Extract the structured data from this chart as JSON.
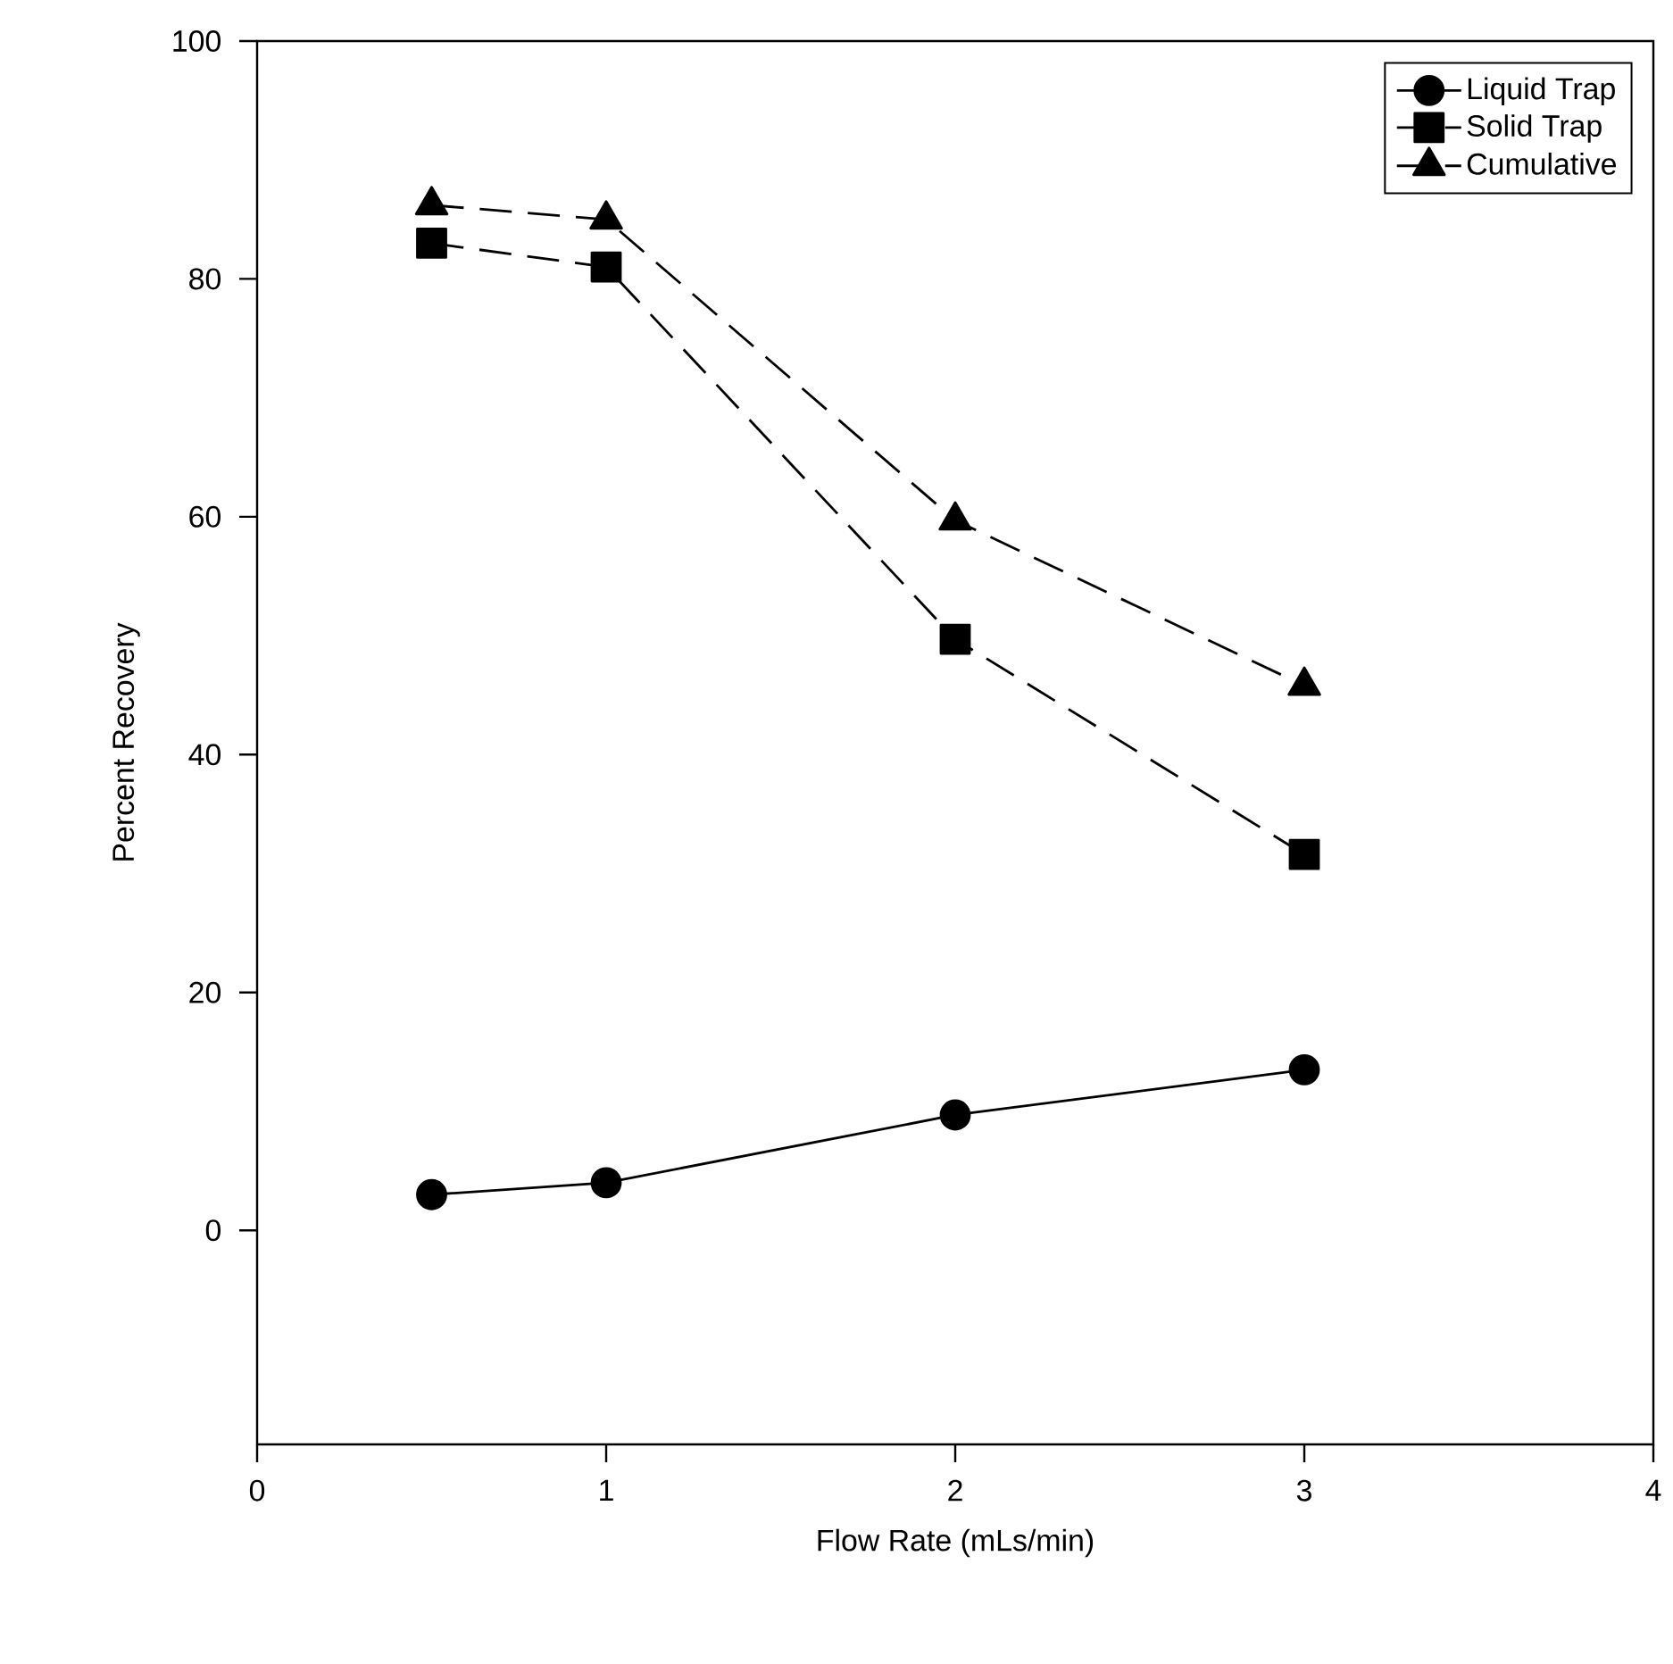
{
  "chart_data": {
    "type": "line",
    "xlabel": "Flow Rate (mLs/min)",
    "ylabel": "Percent Recovery",
    "xlim": [
      0,
      4
    ],
    "ylim": [
      -18,
      100
    ],
    "xticks": [
      0,
      1,
      2,
      3,
      4
    ],
    "yticks": [
      0,
      20,
      40,
      60,
      80,
      100
    ],
    "grid": false,
    "legend": "top right",
    "x": [
      0.5,
      1,
      2,
      3
    ],
    "series": [
      {
        "name": "Liquid Trap",
        "color": "#000000",
        "marker": "circle",
        "line_style": "solid",
        "values": [
          3,
          4,
          9.7,
          13.5
        ]
      },
      {
        "name": "Solid Trap",
        "color": "#000000",
        "marker": "square",
        "line_style": "dashed",
        "values": [
          83,
          81,
          49.7,
          31.6
        ]
      },
      {
        "name": "Cumulative",
        "color": "#000000",
        "marker": "triangle",
        "line_style": "dashed",
        "values": [
          86.2,
          85,
          59.7,
          45.8
        ]
      }
    ]
  }
}
